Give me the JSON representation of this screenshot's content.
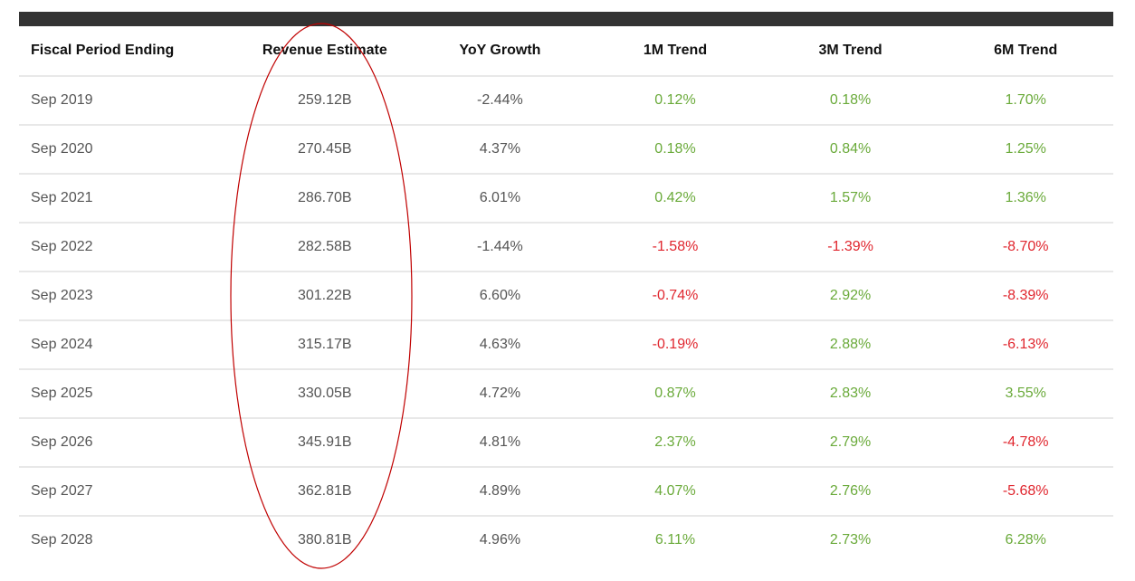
{
  "table": {
    "headers": [
      "Fiscal Period Ending",
      "Revenue Estimate",
      "YoY Growth",
      "1M Trend",
      "3M Trend",
      "6M Trend"
    ],
    "rows": [
      [
        "Sep 2019",
        "259.12B",
        "-2.44%",
        "0.12%",
        "0.18%",
        "1.70%"
      ],
      [
        "Sep 2020",
        "270.45B",
        "4.37%",
        "0.18%",
        "0.84%",
        "1.25%"
      ],
      [
        "Sep 2021",
        "286.70B",
        "6.01%",
        "0.42%",
        "1.57%",
        "1.36%"
      ],
      [
        "Sep 2022",
        "282.58B",
        "-1.44%",
        "-1.58%",
        "-1.39%",
        "-8.70%"
      ],
      [
        "Sep 2023",
        "301.22B",
        "6.60%",
        "-0.74%",
        "2.92%",
        "-8.39%"
      ],
      [
        "Sep 2024",
        "315.17B",
        "4.63%",
        "-0.19%",
        "2.88%",
        "-6.13%"
      ],
      [
        "Sep 2025",
        "330.05B",
        "4.72%",
        "0.87%",
        "2.83%",
        "3.55%"
      ],
      [
        "Sep 2026",
        "345.91B",
        "4.81%",
        "2.37%",
        "2.79%",
        "-4.78%"
      ],
      [
        "Sep 2027",
        "362.81B",
        "4.89%",
        "4.07%",
        "2.76%",
        "-5.68%"
      ],
      [
        "Sep 2028",
        "380.81B",
        "4.96%",
        "6.11%",
        "2.73%",
        "6.28%"
      ]
    ]
  },
  "colors": {
    "positive": "#6aaa3a",
    "negative": "#e0262e",
    "header_bar": "#333333",
    "annotation": "#c00000"
  },
  "annotation": {
    "shape": "ellipse",
    "highlights_column": "Revenue Estimate"
  }
}
